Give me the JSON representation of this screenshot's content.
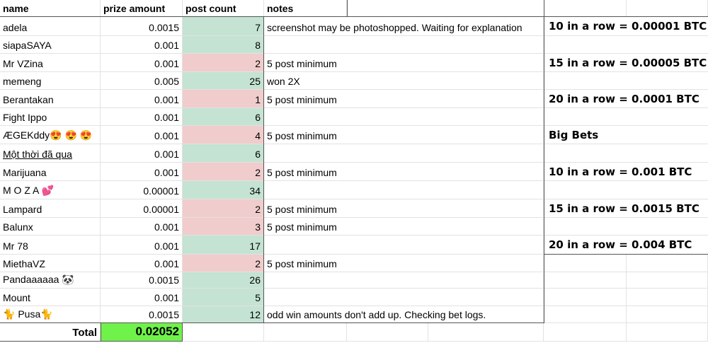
{
  "headers": {
    "name": "name",
    "prize": "prize amount",
    "posts": "post count",
    "notes": "notes"
  },
  "rows": [
    {
      "name": "adela",
      "prize": "0.0015",
      "posts": "7",
      "status": "green",
      "notes": "screenshot may be photoshopped. Waiting for explanation"
    },
    {
      "name": "siapaSAYA",
      "prize": "0.001",
      "posts": "8",
      "status": "green",
      "notes": ""
    },
    {
      "name": "Mr VZina",
      "prize": "0.001",
      "posts": "2",
      "status": "red",
      "notes": "5 post minimum"
    },
    {
      "name": "memeng",
      "prize": "0.005",
      "posts": "25",
      "status": "green",
      "notes": "won 2X"
    },
    {
      "name": "Berantakan",
      "prize": "0.001",
      "posts": "1",
      "status": "red",
      "notes": "5 post minimum"
    },
    {
      "name": "Fight Ippo",
      "prize": "0.001",
      "posts": "6",
      "status": "green",
      "notes": ""
    },
    {
      "name": "ÆGEKddy😍 😍 😍",
      "prize": "0.001",
      "posts": "4",
      "status": "red",
      "notes": "5 post minimum"
    },
    {
      "name": "Một thời đã qua",
      "prize": "0.001",
      "posts": "6",
      "status": "green",
      "notes": "",
      "underline": true
    },
    {
      "name": "Marijuana",
      "prize": "0.001",
      "posts": "2",
      "status": "red",
      "notes": "5 post minimum"
    },
    {
      "name": "M O Z A 💕",
      "prize": "0.00001",
      "posts": "34",
      "status": "green",
      "notes": ""
    },
    {
      "name": "Lampard",
      "prize": "0.00001",
      "posts": "2",
      "status": "red",
      "notes": "5 post minimum"
    },
    {
      "name": "Balunx",
      "prize": "0.001",
      "posts": "3",
      "status": "red",
      "notes": "5 post minimum"
    },
    {
      "name": "Mr 78",
      "prize": "0.001",
      "posts": "17",
      "status": "green",
      "notes": ""
    },
    {
      "name": "MiethaVZ",
      "prize": "0.001",
      "posts": "2",
      "status": "red",
      "notes": "5 post minimum"
    },
    {
      "name": "Pandaaaaaa 🐼",
      "prize": "0.0015",
      "posts": "26",
      "status": "green",
      "notes": ""
    },
    {
      "name": "Mount",
      "prize": "0.001",
      "posts": "5",
      "status": "green",
      "notes": ""
    },
    {
      "name": "🐈 Pusa🐈",
      "prize": "0.0015",
      "posts": "12",
      "status": "green",
      "notes": "odd win amounts don't add up. Checking bet logs."
    }
  ],
  "total": {
    "label": "Total",
    "value": "0.02052"
  },
  "rules": [
    "10 in a row = 0.00001 BTC",
    "15 in a row = 0.00005 BTC",
    "20 in a row = 0.0001 BTC",
    "Big Bets",
    "10 in a row = 0.001 BTC",
    "15 in a row = 0.0015 BTC",
    "20 in a row = 0.004 BTC"
  ],
  "colors": {
    "good": "#c4e3d3",
    "bad": "#f0cccc",
    "total": "#6ff24a"
  }
}
